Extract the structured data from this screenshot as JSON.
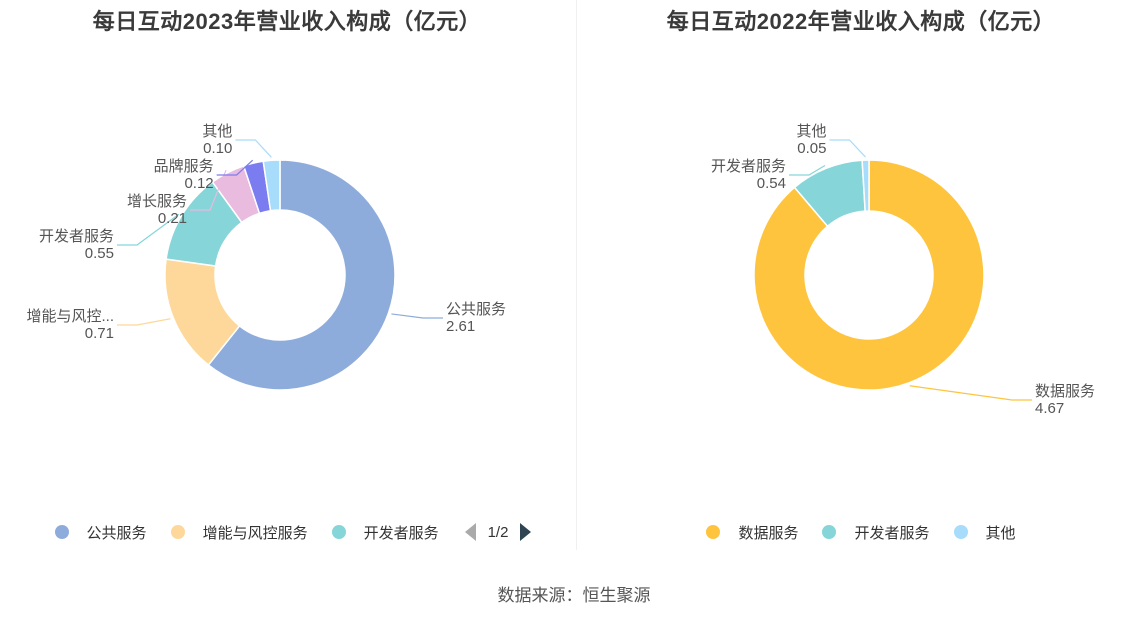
{
  "chart_data": [
    {
      "type": "pie",
      "title": "每日互动2023年营业收入构成（亿元）",
      "labels": [
        "公共服务",
        "增能与风控服务",
        "开发者服务",
        "增长服务",
        "品牌服务",
        "其他"
      ],
      "label_display": [
        "公共服务",
        "增能与风控...",
        "开发者服务",
        "增长服务",
        "品牌服务",
        "其他"
      ],
      "values": [
        2.61,
        0.71,
        0.55,
        0.21,
        0.12,
        0.1
      ],
      "value_labels": [
        "2.61",
        "0.71",
        "0.55",
        "0.21",
        "0.12",
        "0.10"
      ],
      "colors": [
        "#8eacdb",
        "#fdd89a",
        "#86d5d9",
        "#e8bbdf",
        "#7b7cf0",
        "#a7dcfb"
      ],
      "legend_position": "bottom",
      "legend_visible": [
        "公共服务",
        "增能与风控服务",
        "开发者服务"
      ],
      "legend_page": "1/2"
    },
    {
      "type": "pie",
      "title": "每日互动2022年营业收入构成（亿元）",
      "labels": [
        "数据服务",
        "开发者服务",
        "其他"
      ],
      "label_display": [
        "数据服务",
        "开发者服务",
        "其他"
      ],
      "values": [
        4.67,
        0.54,
        0.05
      ],
      "value_labels": [
        "4.67",
        "0.54",
        "0.05"
      ],
      "colors": [
        "#ffc43d",
        "#86d5d9",
        "#a7dcfb"
      ],
      "legend_position": "bottom",
      "legend_visible": [
        "数据服务",
        "开发者服务",
        "其他"
      ]
    }
  ],
  "source": "数据来源：恒生聚源"
}
